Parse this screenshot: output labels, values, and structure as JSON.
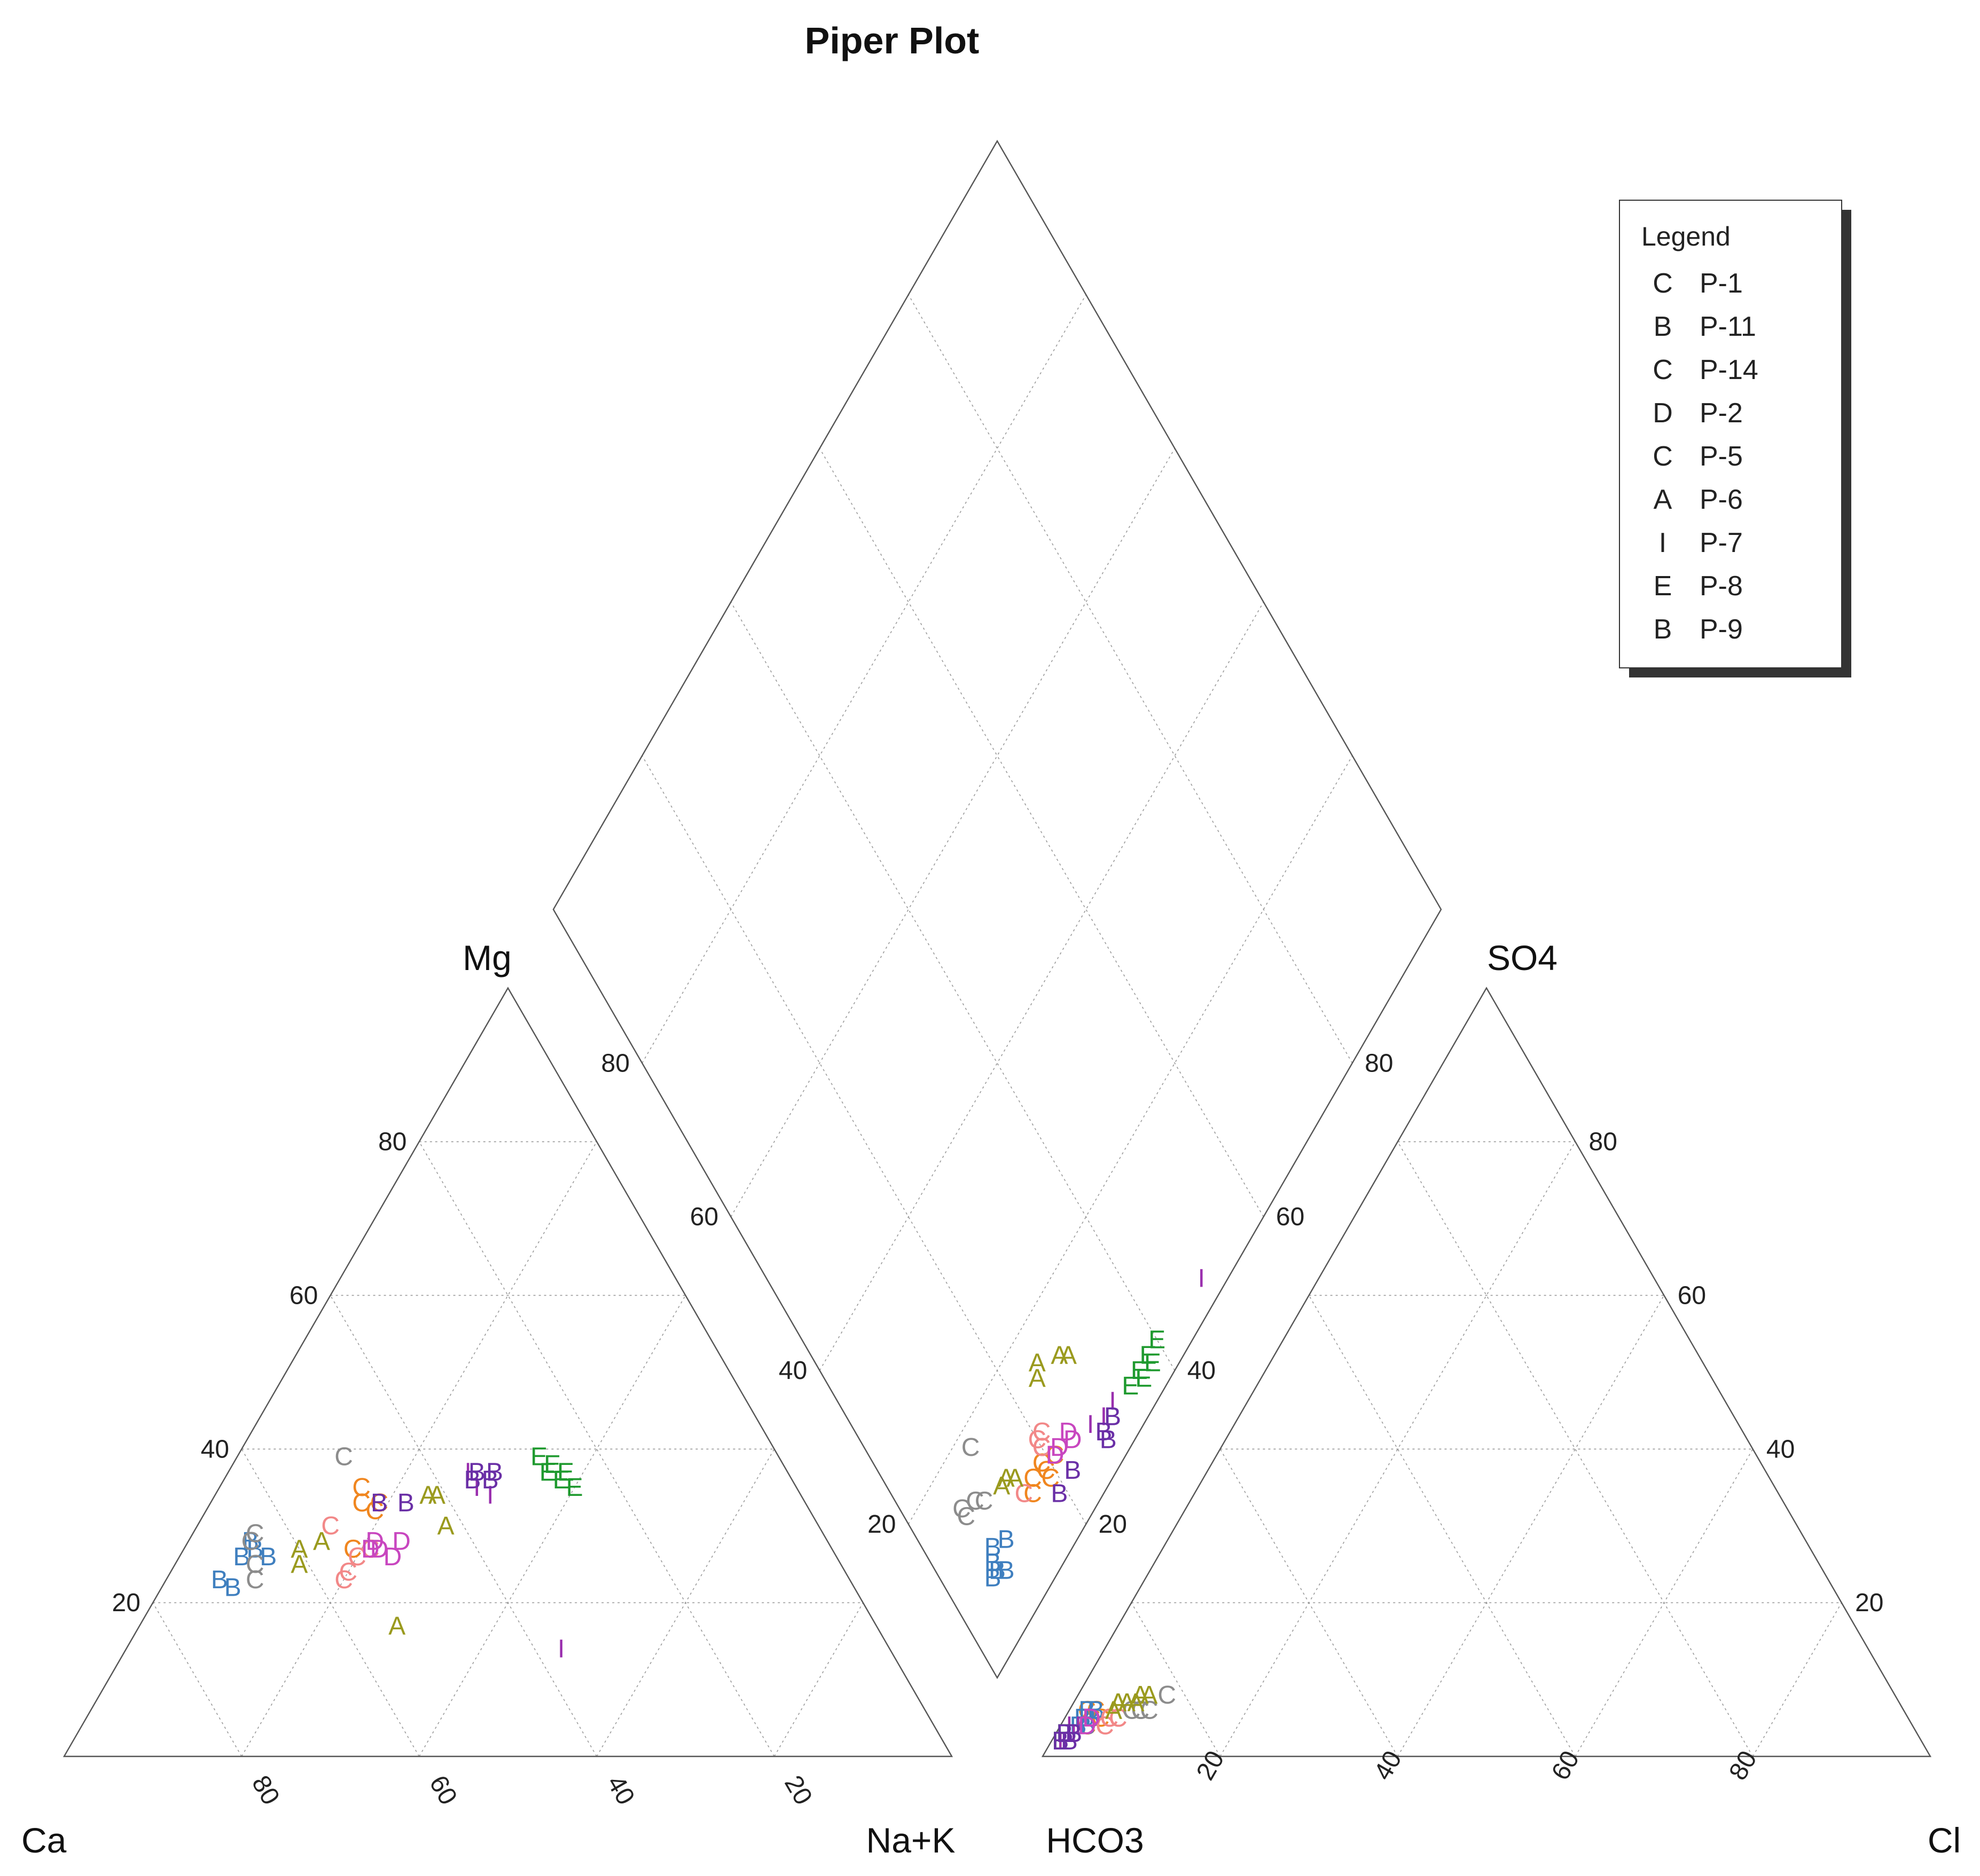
{
  "chart_data": {
    "type": "scatter",
    "subtype": "piper-trilinear",
    "title": "Piper Plot",
    "corner_labels": {
      "ca": "Ca",
      "mg": "Mg",
      "nak": "Na+K",
      "hco3": "HCO3",
      "so4": "SO4",
      "cl": "Cl"
    },
    "tick_values": [
      20,
      40,
      60,
      80
    ],
    "grid": true,
    "legend": {
      "title": "Legend",
      "placement": "top-right"
    },
    "series": [
      {
        "name": "P-1",
        "marker": "C",
        "color": "#f0861f",
        "points": [
          {
            "ca": 49,
            "mg": 35,
            "hco3": 92,
            "cl": 2
          },
          {
            "ca": 50,
            "mg": 33,
            "hco3": 91,
            "cl": 3
          },
          {
            "ca": 49,
            "mg": 32,
            "hco3": 92,
            "cl": 3
          },
          {
            "ca": 48,
            "mg": 33,
            "hco3": 91,
            "cl": 4
          },
          {
            "ca": 52,
            "mg": 27,
            "hco3": 92,
            "cl": 3
          },
          {
            "ca": 54,
            "mg": 27,
            "hco3": 93,
            "cl": 3
          }
        ]
      },
      {
        "name": "P-11",
        "marker": "B",
        "color": "#3f7fbf",
        "points": [
          {
            "ca": 71,
            "mg": 23,
            "hco3": 93,
            "cl": 2
          },
          {
            "ca": 70,
            "mg": 22,
            "hco3": 94,
            "cl": 2
          },
          {
            "ca": 67,
            "mg": 26,
            "hco3": 92,
            "cl": 3
          },
          {
            "ca": 65,
            "mg": 28,
            "hco3": 93,
            "cl": 3
          },
          {
            "ca": 65,
            "mg": 27,
            "hco3": 91,
            "cl": 3
          },
          {
            "ca": 64,
            "mg": 26,
            "hco3": 92,
            "cl": 2
          }
        ]
      },
      {
        "name": "P-14",
        "marker": "C",
        "color": "#f28888",
        "points": [
          {
            "ca": 55,
            "mg": 30,
            "hco3": 91,
            "cl": 5
          },
          {
            "ca": 57,
            "mg": 23,
            "hco3": 90,
            "cl": 5
          },
          {
            "ca": 56,
            "mg": 24,
            "hco3": 90,
            "cl": 5
          },
          {
            "ca": 54,
            "mg": 26,
            "hco3": 89,
            "cl": 6
          },
          {
            "ca": 52,
            "mg": 27,
            "hco3": 89,
            "cl": 6
          }
        ]
      },
      {
        "name": "P-2",
        "marker": "D",
        "color": "#c846bf",
        "points": [
          {
            "ca": 51,
            "mg": 28,
            "hco3": 92,
            "cl": 3
          },
          {
            "ca": 52,
            "mg": 27,
            "hco3": 92,
            "cl": 3
          },
          {
            "ca": 51,
            "mg": 27,
            "hco3": 92,
            "cl": 3
          },
          {
            "ca": 50,
            "mg": 26,
            "hco3": 93,
            "cl": 3
          },
          {
            "ca": 48,
            "mg": 28,
            "hco3": 92,
            "cl": 3
          }
        ]
      },
      {
        "name": "P-5",
        "marker": "C",
        "color": "#8c8c8c",
        "points": [
          {
            "ca": 49,
            "mg": 39,
            "hco3": 82,
            "cl": 10
          },
          {
            "ca": 64,
            "mg": 29,
            "hco3": 85,
            "cl": 9
          },
          {
            "ca": 65,
            "mg": 28,
            "hco3": 86,
            "cl": 8
          },
          {
            "ca": 66,
            "mg": 25,
            "hco3": 86,
            "cl": 8
          },
          {
            "ca": 67,
            "mg": 23,
            "hco3": 87,
            "cl": 7
          }
        ]
      },
      {
        "name": "P-6",
        "marker": "A",
        "color": "#9a9a1e",
        "points": [
          {
            "ca": 41,
            "mg": 34,
            "hco3": 84,
            "cl": 8
          },
          {
            "ca": 42,
            "mg": 34,
            "hco3": 85,
            "cl": 7
          },
          {
            "ca": 42,
            "mg": 30,
            "hco3": 86,
            "cl": 7
          },
          {
            "ca": 60,
            "mg": 27,
            "hco3": 88,
            "cl": 5
          },
          {
            "ca": 61,
            "mg": 25,
            "hco3": 88,
            "cl": 5
          },
          {
            "ca": 57,
            "mg": 28,
            "hco3": 89,
            "cl": 5
          },
          {
            "ca": 54,
            "mg": 17,
            "hco3": 87,
            "cl": 6
          }
        ]
      },
      {
        "name": "P-7",
        "marker": "I",
        "color": "#9a2fae",
        "points": [
          {
            "ca": 36,
            "mg": 37,
            "hco3": 94,
            "cl": 2
          },
          {
            "ca": 36,
            "mg": 35,
            "hco3": 95,
            "cl": 2
          },
          {
            "ca": 35,
            "mg": 34,
            "hco3": 95,
            "cl": 1
          },
          {
            "ca": 37,
            "mg": 14,
            "hco3": 97,
            "cl": 1
          }
        ]
      },
      {
        "name": "P-8",
        "marker": "E",
        "color": "#1f9a2f",
        "points": [
          {
            "ca": 27,
            "mg": 39,
            "hco3": 96,
            "cl": 1
          },
          {
            "ca": 26,
            "mg": 38,
            "hco3": 96,
            "cl": 1
          },
          {
            "ca": 27,
            "mg": 37,
            "hco3": 97,
            "cl": 1
          },
          {
            "ca": 25,
            "mg": 37,
            "hco3": 96,
            "cl": 1
          },
          {
            "ca": 26,
            "mg": 36,
            "hco3": 97,
            "cl": 1
          },
          {
            "ca": 25,
            "mg": 35,
            "hco3": 96,
            "cl": 1
          }
        ]
      },
      {
        "name": "P-9",
        "marker": "B",
        "color": "#6a2fa6",
        "points": [
          {
            "ca": 33,
            "mg": 37,
            "hco3": 96,
            "cl": 1
          },
          {
            "ca": 35,
            "mg": 37,
            "hco3": 97,
            "cl": 1
          },
          {
            "ca": 34,
            "mg": 36,
            "hco3": 96,
            "cl": 2
          },
          {
            "ca": 36,
            "mg": 36,
            "hco3": 96,
            "cl": 1
          },
          {
            "ca": 45,
            "mg": 33,
            "hco3": 95,
            "cl": 2
          },
          {
            "ca": 48,
            "mg": 33,
            "hco3": 95,
            "cl": 2
          }
        ]
      }
    ]
  }
}
